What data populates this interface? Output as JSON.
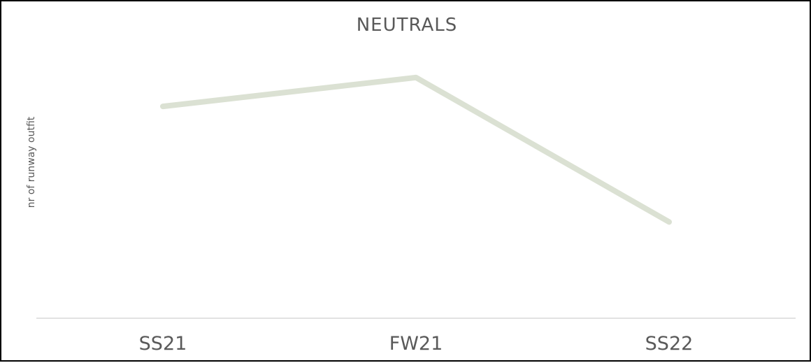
{
  "chart_data": {
    "type": "line",
    "title": "NEUTRALS",
    "xlabel": "",
    "ylabel": "nr of runway outfit",
    "categories": [
      "SS21",
      "FW21",
      "SS22"
    ],
    "series": [
      {
        "values": [
          88,
          100,
          40
        ],
        "color": "#dbe1d3"
      }
    ],
    "ylim": [
      0,
      120
    ],
    "grid": false,
    "legend": "none",
    "axis_color": "#d9d9d9"
  }
}
